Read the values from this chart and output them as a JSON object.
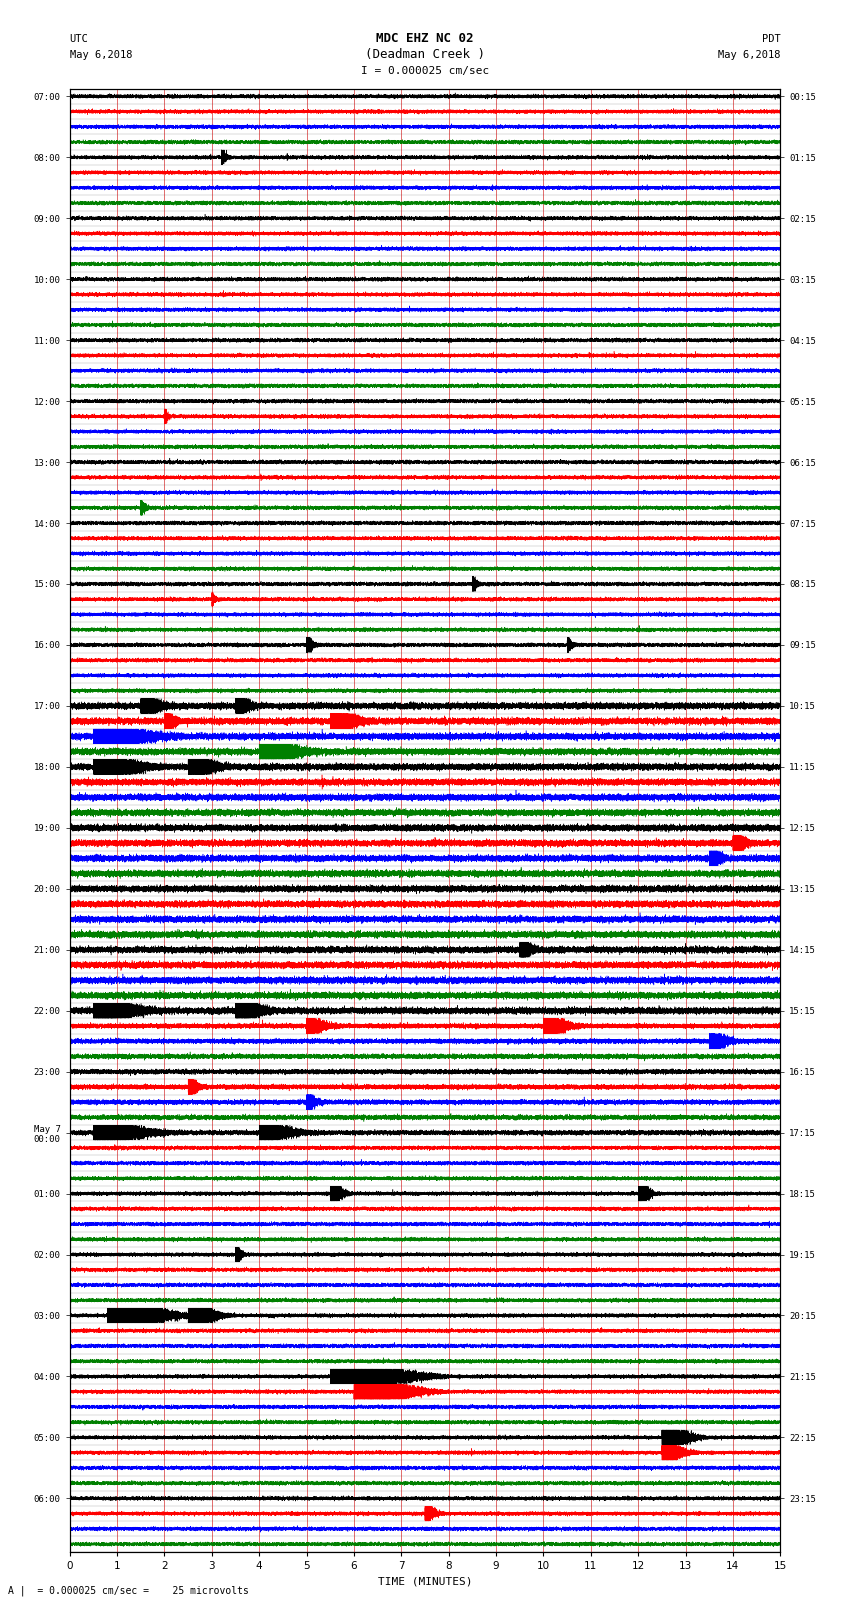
{
  "title_line1": "MDC EHZ NC 02",
  "title_line2": "(Deadman Creek )",
  "scale_label": "I = 0.000025 cm/sec",
  "bottom_label": "A |  = 0.000025 cm/sec =    25 microvolts",
  "xlabel": "TIME (MINUTES)",
  "utc_label": "UTC",
  "utc_date": "May 6,2018",
  "pdt_label": "PDT",
  "pdt_date": "May 6,2018",
  "colors": [
    "black",
    "red",
    "blue",
    "green"
  ],
  "xlim": [
    0,
    15
  ],
  "background_color": "white",
  "sample_rate": 50,
  "minutes_per_row": 15,
  "n_rows": 96,
  "left_times_positions": [
    0,
    4,
    8,
    12,
    16,
    20,
    24,
    28,
    32,
    36,
    40,
    44,
    48,
    52,
    56,
    60,
    64,
    68,
    72,
    76,
    80,
    84,
    88,
    92
  ],
  "left_times_labels": [
    "07:00",
    "08:00",
    "09:00",
    "10:00",
    "11:00",
    "12:00",
    "13:00",
    "14:00",
    "15:00",
    "16:00",
    "17:00",
    "18:00",
    "19:00",
    "20:00",
    "21:00",
    "22:00",
    "23:00",
    "May 7\n00:00",
    "01:00",
    "02:00",
    "03:00",
    "04:00",
    "05:00",
    "06:00"
  ],
  "right_times_positions": [
    0,
    4,
    8,
    12,
    16,
    20,
    24,
    28,
    32,
    36,
    40,
    44,
    48,
    52,
    56,
    60,
    64,
    68,
    72,
    76,
    80,
    84,
    88,
    92
  ],
  "right_times_labels": [
    "00:15",
    "01:15",
    "02:15",
    "03:15",
    "04:15",
    "05:15",
    "06:15",
    "07:15",
    "08:15",
    "09:15",
    "10:15",
    "11:15",
    "12:15",
    "13:15",
    "14:15",
    "15:15",
    "16:15",
    "17:15",
    "18:15",
    "19:15",
    "20:15",
    "21:15",
    "22:15",
    "23:15"
  ],
  "vline_color": "#cc0000",
  "hline_color": "#aaaaaa",
  "vline_lw": 0.4,
  "hline_lw": 0.3
}
